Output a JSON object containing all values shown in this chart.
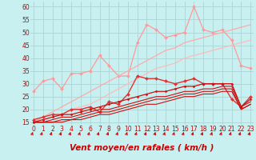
{
  "xlabel": "Vent moyen/en rafales ( km/h )",
  "bg_color": "#c8f0f0",
  "grid_color": "#b0d8d8",
  "x": [
    0,
    1,
    2,
    3,
    4,
    5,
    6,
    7,
    8,
    9,
    10,
    11,
    12,
    13,
    14,
    15,
    16,
    17,
    18,
    19,
    20,
    21,
    22,
    23
  ],
  "series": [
    {
      "color": "#ff9999",
      "lw": 0.9,
      "marker": "D",
      "ms": 2.0,
      "y": [
        27,
        31,
        32,
        28,
        34,
        34,
        35,
        41,
        37,
        33,
        33,
        46,
        53,
        51,
        48,
        49,
        50,
        60,
        51,
        50,
        51,
        47,
        37,
        36
      ]
    },
    {
      "color": "#ffaaaa",
      "lw": 0.9,
      "marker": null,
      "ms": 0,
      "y": [
        15,
        17,
        19,
        21,
        23,
        25,
        27,
        29,
        31,
        33,
        35,
        37,
        39,
        41,
        43,
        44,
        46,
        47,
        48,
        49,
        50,
        51,
        52,
        53
      ]
    },
    {
      "color": "#ffbbbb",
      "lw": 0.9,
      "marker": null,
      "ms": 0,
      "y": [
        15,
        16,
        17,
        18,
        20,
        21,
        22,
        24,
        26,
        28,
        30,
        32,
        34,
        36,
        37,
        38,
        40,
        41,
        42,
        43,
        44,
        45,
        46,
        47
      ]
    },
    {
      "color": "#dd3333",
      "lw": 1.0,
      "marker": "D",
      "ms": 2.0,
      "y": [
        16,
        17,
        18,
        18,
        20,
        20,
        21,
        19,
        23,
        22,
        26,
        33,
        32,
        32,
        31,
        30,
        31,
        32,
        30,
        30,
        30,
        24,
        21,
        25
      ]
    },
    {
      "color": "#cc1111",
      "lw": 0.9,
      "marker": "D",
      "ms": 1.5,
      "y": [
        15,
        16,
        17,
        18,
        18,
        19,
        20,
        21,
        22,
        23,
        24,
        25,
        26,
        27,
        27,
        28,
        29,
        29,
        30,
        30,
        30,
        30,
        21,
        24
      ]
    },
    {
      "color": "#cc1111",
      "lw": 0.8,
      "marker": null,
      "ms": 0,
      "y": [
        15,
        15,
        16,
        17,
        17,
        18,
        19,
        20,
        20,
        21,
        22,
        23,
        24,
        25,
        25,
        26,
        27,
        27,
        28,
        28,
        29,
        29,
        21,
        23
      ]
    },
    {
      "color": "#cc1111",
      "lw": 0.8,
      "marker": null,
      "ms": 0,
      "y": [
        15,
        15,
        15,
        16,
        16,
        17,
        18,
        19,
        19,
        20,
        21,
        22,
        23,
        24,
        24,
        25,
        26,
        26,
        27,
        27,
        28,
        28,
        20,
        22
      ]
    },
    {
      "color": "#cc1111",
      "lw": 0.8,
      "marker": null,
      "ms": 0,
      "y": [
        15,
        15,
        15,
        15,
        16,
        16,
        17,
        18,
        18,
        19,
        20,
        21,
        22,
        22,
        23,
        24,
        25,
        25,
        26,
        26,
        27,
        27,
        20,
        22
      ]
    }
  ],
  "ylim": [
    14,
    62
  ],
  "yticks": [
    15,
    20,
    25,
    30,
    35,
    40,
    45,
    50,
    55,
    60
  ],
  "xticks": [
    0,
    1,
    2,
    3,
    4,
    5,
    6,
    7,
    8,
    9,
    10,
    11,
    12,
    13,
    14,
    15,
    16,
    17,
    18,
    19,
    20,
    21,
    22,
    23
  ],
  "tick_color": "#cc0000",
  "label_color": "#cc0000",
  "xlabel_fontsize": 7.5,
  "tick_fontsize": 5.5
}
